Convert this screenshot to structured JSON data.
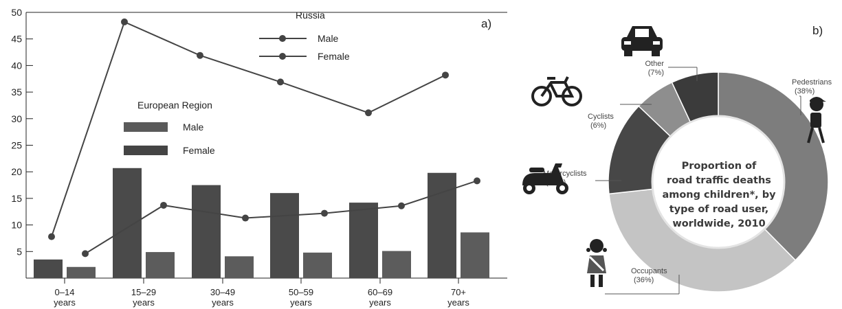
{
  "chart_data": [
    {
      "type": "bar",
      "panel_label": "a)",
      "categories": [
        [
          "0–14",
          "years"
        ],
        [
          "15–29",
          "years"
        ],
        [
          "30–49",
          "years"
        ],
        [
          "50–59",
          "years"
        ],
        [
          "60–69",
          "years"
        ],
        [
          "70+",
          "years"
        ]
      ],
      "ylim": [
        0,
        50
      ],
      "yticks": [
        5,
        10,
        15,
        20,
        25,
        30,
        35,
        40,
        45,
        50
      ],
      "bar_legend_title": "European Region",
      "bar_series": [
        {
          "name": "Male",
          "values": [
            3.5,
            20.7,
            17.5,
            16.0,
            14.2,
            19.8
          ],
          "color": "#4a4a4a"
        },
        {
          "name": "Female",
          "values": [
            2.1,
            4.9,
            4.1,
            4.8,
            5.1,
            8.6
          ],
          "color": "#5c5c5c"
        }
      ],
      "line_legend_title": "Russia",
      "line_series": [
        {
          "name": "Male",
          "values": [
            7.8,
            48.2,
            41.9,
            36.9,
            31.1,
            38.2
          ],
          "color": "#444444"
        },
        {
          "name": "Female",
          "values": [
            4.6,
            13.7,
            11.3,
            12.2,
            13.6,
            18.3
          ],
          "color": "#444444"
        }
      ],
      "legend_bar_colors": [
        "#5a5a5a",
        "#444444"
      ]
    },
    {
      "type": "pie",
      "panel_label": "b)",
      "center_text": [
        "Proportion of",
        "road traffic deaths",
        "among children*, by",
        "type of road user,",
        "worldwide, 2010"
      ],
      "slices": [
        {
          "label": "Pedestrians",
          "pct_label": "(38%)",
          "value": 38,
          "color": "#7d7d7d"
        },
        {
          "label": "Occupants",
          "pct_label": "(36%)",
          "value": 36,
          "color": "#c4c4c4"
        },
        {
          "label": "Motorcyclists",
          "pct_label": "(14%)",
          "value": 14,
          "color": "#474747"
        },
        {
          "label": "Cyclists",
          "pct_label": "(6%)",
          "value": 6,
          "color": "#8e8e8e"
        },
        {
          "label": "Other",
          "pct_label": "(7%)",
          "value": 7,
          "color": "#3b3b3b"
        }
      ],
      "icons": [
        "car-icon",
        "bicycle-icon",
        "scooter-icon",
        "pedestrian-icon",
        "child-occupant-icon"
      ]
    }
  ]
}
